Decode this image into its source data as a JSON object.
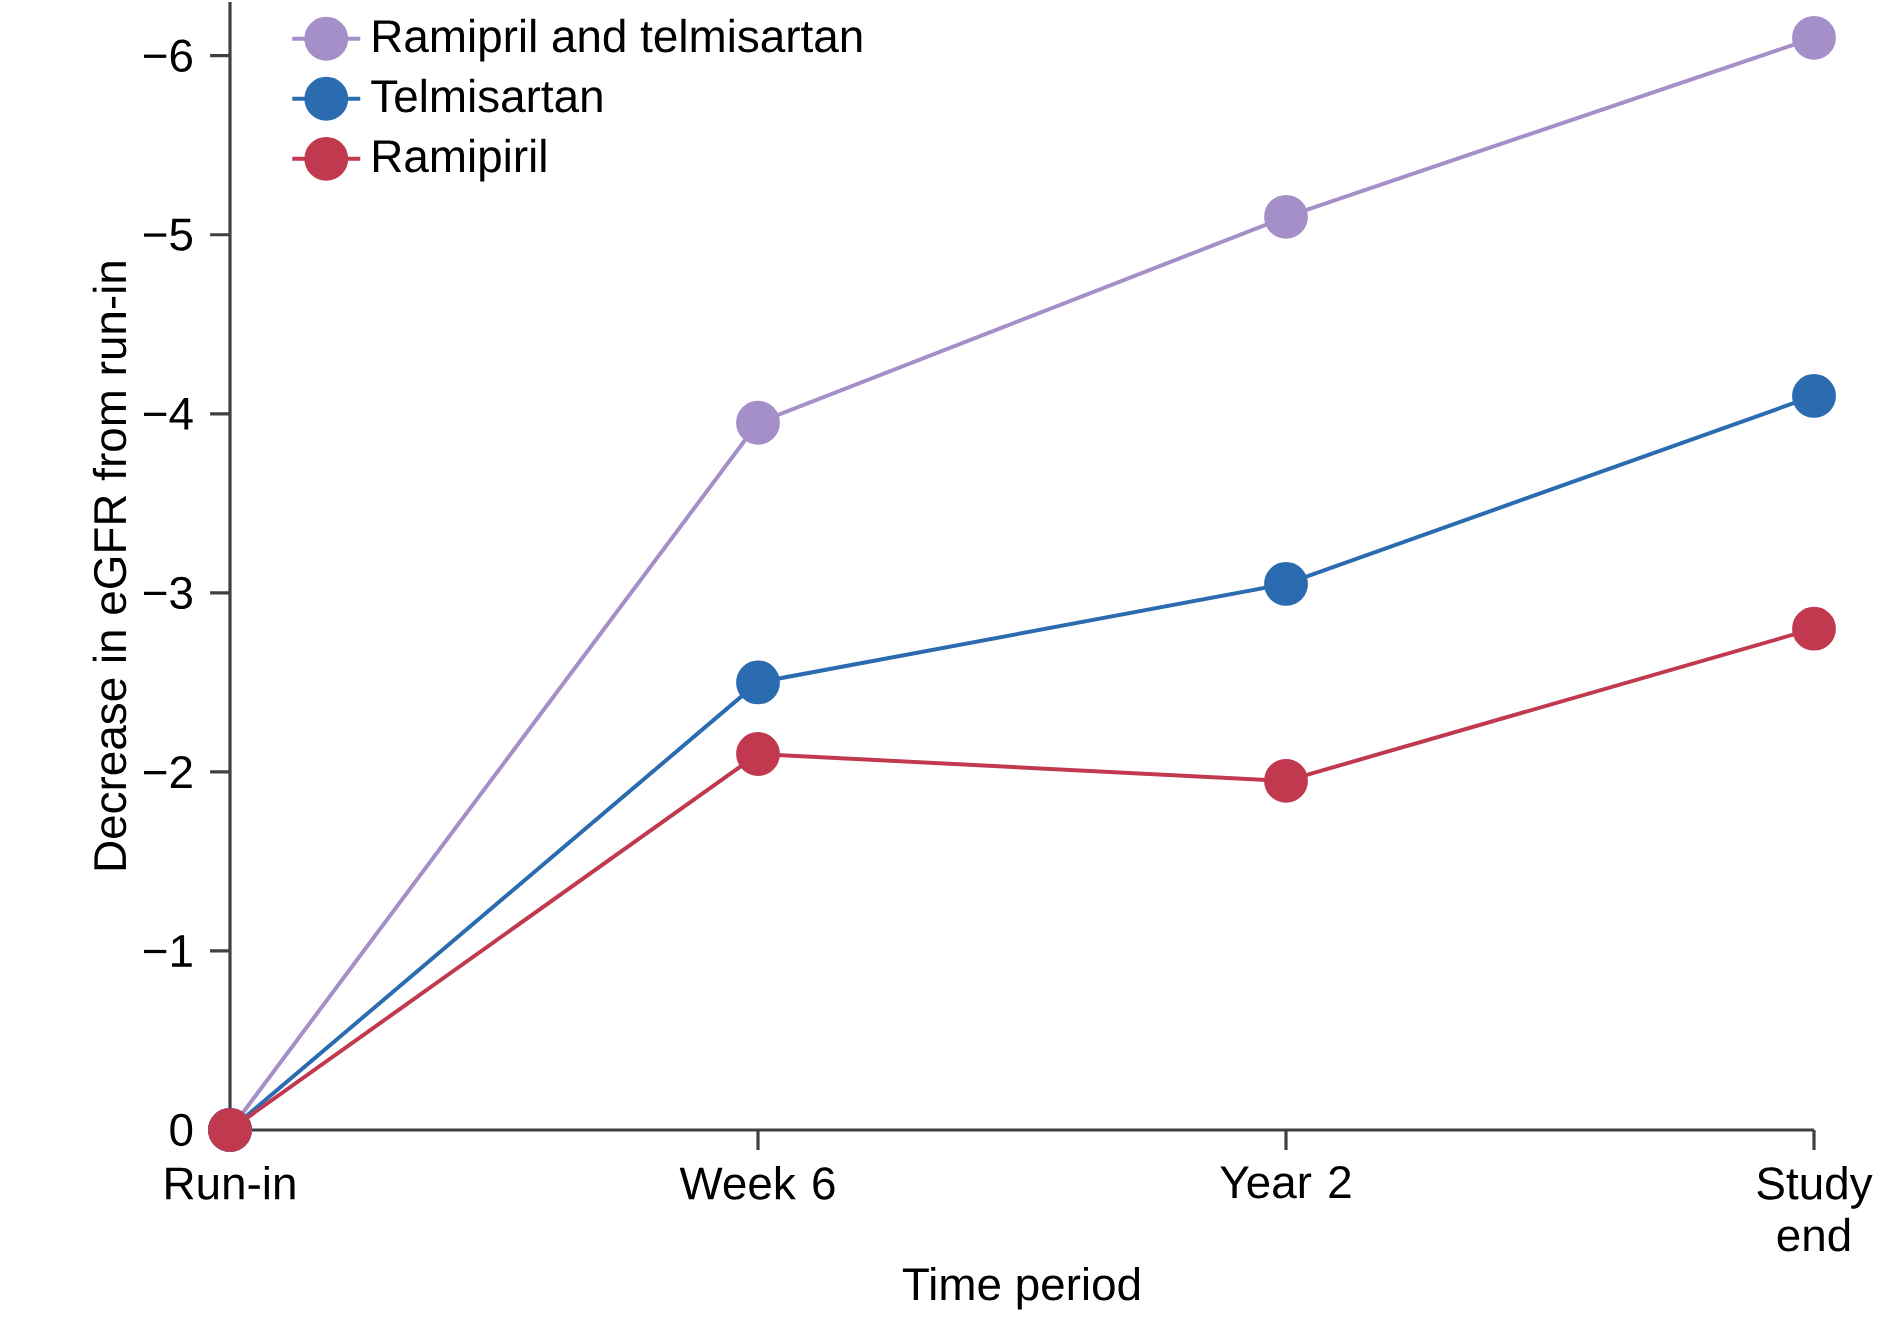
{
  "chart_data": {
    "type": "line",
    "xlabel": "Time period",
    "ylabel": "Decrease in eGFR from run-in",
    "categories": [
      "Run-in",
      "Week 6",
      "Year 2",
      "Study end"
    ],
    "series": [
      {
        "name": "Ramipril and telmisartan",
        "color": "#a58fc8",
        "values": [
          0,
          -3.95,
          -5.1,
          -6.1
        ]
      },
      {
        "name": "Telmisartan",
        "color": "#2b6cb0",
        "values": [
          0,
          -2.5,
          -3.05,
          -4.1
        ]
      },
      {
        "name": "Ramipiril",
        "color": "#c0394f",
        "values": [
          0,
          -2.1,
          -1.95,
          -2.8
        ]
      }
    ],
    "ylim": [
      0,
      -6.3
    ],
    "yticks": [
      0,
      {
        "value": -1,
        "label": "−1"
      },
      {
        "value": -2,
        "label": "−2"
      },
      {
        "value": -3,
        "label": "−3"
      },
      {
        "value": -4,
        "label": "−4"
      },
      {
        "value": -5,
        "label": "−5"
      },
      {
        "value": -6,
        "label": "−6"
      }
    ],
    "grid": false,
    "legend": "top left",
    "marker": "circle",
    "line_style": "solid"
  }
}
